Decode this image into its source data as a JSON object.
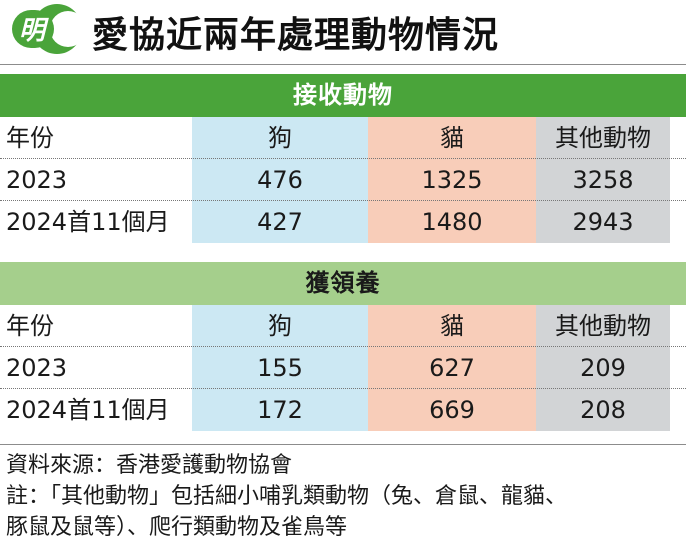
{
  "header": {
    "logo_char": "明",
    "title": "愛協近兩年處理動物情況"
  },
  "colors": {
    "logo_green": "#4aa43a",
    "banner_dark_green": "#4aa43a",
    "banner_light_green": "#a5cf8c",
    "dog_column": "#cce8f3",
    "cat_column": "#f8cdb9",
    "other_column": "#d2d4d6"
  },
  "chart_data": {
    "type": "table",
    "title": "愛協近兩年處理動物情況",
    "tables": [
      {
        "caption": "接收動物",
        "columns": [
          "年份",
          "狗",
          "貓",
          "其他動物"
        ],
        "rows": [
          {
            "label": "2023",
            "values": [
              "476",
              "1325",
              "3258"
            ]
          },
          {
            "label": "2024首11個月",
            "values": [
              "427",
              "1480",
              "2943"
            ]
          }
        ]
      },
      {
        "caption": "獲領養",
        "columns": [
          "年份",
          "狗",
          "貓",
          "其他動物"
        ],
        "rows": [
          {
            "label": "2023",
            "values": [
              "155",
              "627",
              "209"
            ]
          },
          {
            "label": "2024首11個月",
            "values": [
              "172",
              "669",
              "208"
            ]
          }
        ]
      }
    ]
  },
  "footer": {
    "source": "資料來源：香港愛護動物協會",
    "note_line1": "註：「其他動物」包括細小哺乳類動物（兔、倉鼠、龍貓、",
    "note_line2": "豚鼠及鼠等）、爬行類動物及雀鳥等"
  }
}
